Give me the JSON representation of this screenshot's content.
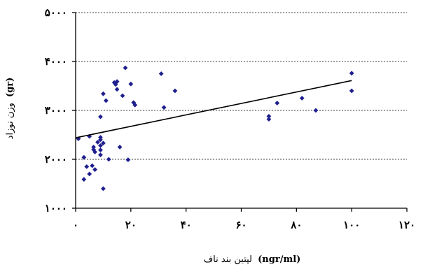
{
  "chart_data": {
    "type": "scatter",
    "title": "",
    "xlabel_text": "لپتین بند ناف",
    "xlabel_unit": "(ngr/ml)",
    "ylabel_text": "وزن نوزاد",
    "ylabel_unit": "(gr)",
    "xlim": [
      0,
      120
    ],
    "ylim": [
      1000,
      5000
    ],
    "x_ticks": [
      0,
      20,
      40,
      60,
      80,
      100,
      120
    ],
    "x_tick_labels": [
      "۰",
      "۲۰",
      "۴۰",
      "۶۰",
      "۸۰",
      "۱۰۰",
      "۱۲۰"
    ],
    "y_ticks": [
      1000,
      2000,
      3000,
      4000,
      5000
    ],
    "y_tick_labels": [
      "۱۰۰۰",
      "۲۰۰۰",
      "۳۰۰۰",
      "۴۰۰۰",
      "۵۰۰۰"
    ],
    "grid": "horizontal-dashed",
    "marker_color": "#1f1f8f",
    "trendline_color": "#000000",
    "trendline": {
      "x": [
        0,
        100
      ],
      "y": [
        2440,
        3610
      ]
    },
    "points": [
      {
        "x": 1,
        "y": 2420
      },
      {
        "x": 3,
        "y": 2040
      },
      {
        "x": 3,
        "y": 1590
      },
      {
        "x": 4,
        "y": 1850
      },
      {
        "x": 5,
        "y": 2470
      },
      {
        "x": 5,
        "y": 1700
      },
      {
        "x": 6,
        "y": 1870
      },
      {
        "x": 6.5,
        "y": 2200
      },
      {
        "x": 6.5,
        "y": 2250
      },
      {
        "x": 7,
        "y": 2150
      },
      {
        "x": 7,
        "y": 1790
      },
      {
        "x": 8,
        "y": 2350
      },
      {
        "x": 9,
        "y": 2450
      },
      {
        "x": 9,
        "y": 2400
      },
      {
        "x": 9,
        "y": 2280
      },
      {
        "x": 9,
        "y": 2190
      },
      {
        "x": 9,
        "y": 2090
      },
      {
        "x": 9,
        "y": 2870
      },
      {
        "x": 10,
        "y": 2330
      },
      {
        "x": 10,
        "y": 1400
      },
      {
        "x": 10,
        "y": 3340
      },
      {
        "x": 11,
        "y": 3200
      },
      {
        "x": 12,
        "y": 2000
      },
      {
        "x": 14,
        "y": 3570
      },
      {
        "x": 14.5,
        "y": 3530
      },
      {
        "x": 15,
        "y": 3590
      },
      {
        "x": 15,
        "y": 3430
      },
      {
        "x": 16,
        "y": 2250
      },
      {
        "x": 17,
        "y": 3300
      },
      {
        "x": 18,
        "y": 3870
      },
      {
        "x": 19,
        "y": 1990
      },
      {
        "x": 20,
        "y": 3540
      },
      {
        "x": 21,
        "y": 3160
      },
      {
        "x": 21.5,
        "y": 3110
      },
      {
        "x": 31,
        "y": 3750
      },
      {
        "x": 32,
        "y": 3060
      },
      {
        "x": 36,
        "y": 3400
      },
      {
        "x": 70,
        "y": 2880
      },
      {
        "x": 70,
        "y": 2820
      },
      {
        "x": 73,
        "y": 3150
      },
      {
        "x": 82,
        "y": 3250
      },
      {
        "x": 87,
        "y": 3000
      },
      {
        "x": 100,
        "y": 3760
      },
      {
        "x": 100,
        "y": 3400
      }
    ]
  }
}
